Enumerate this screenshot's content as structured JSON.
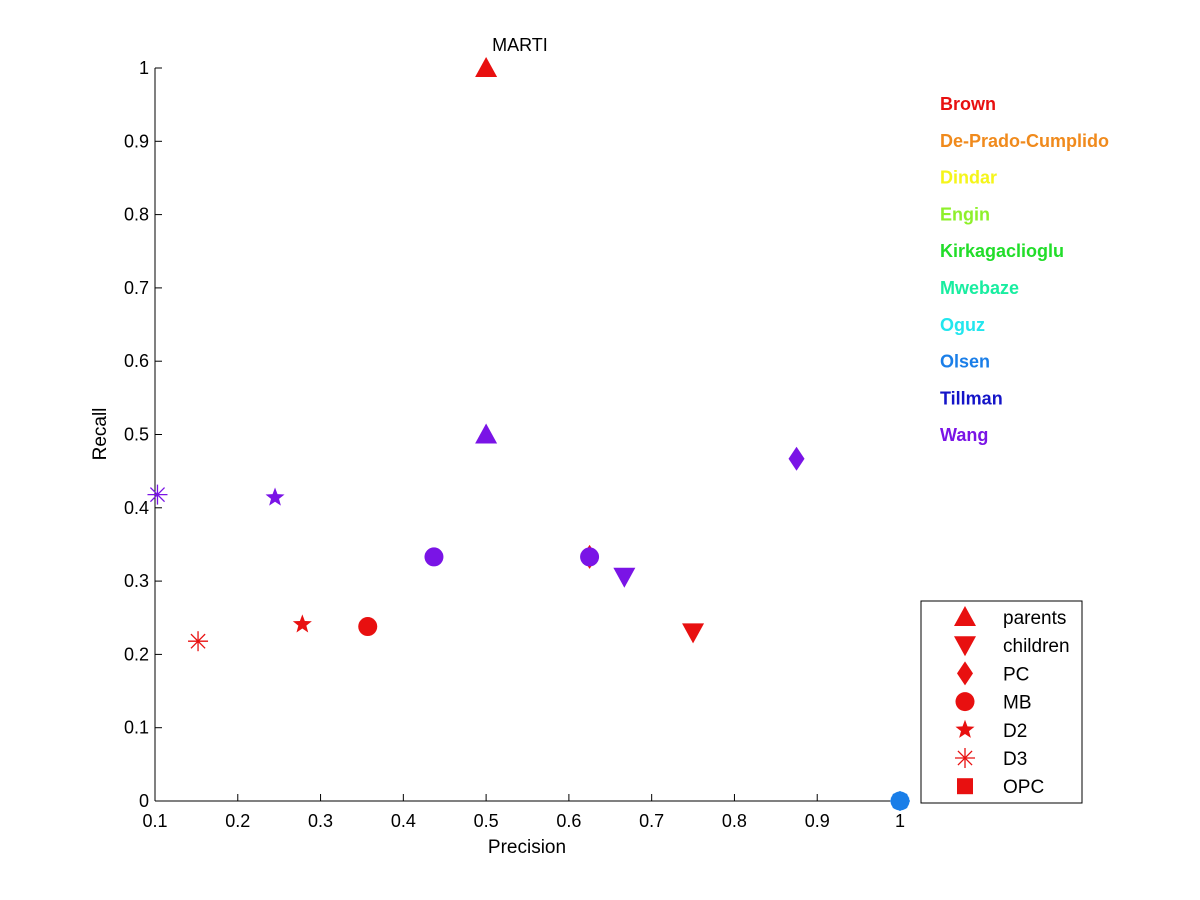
{
  "chart_data": {
    "type": "scatter",
    "title": "",
    "xlabel": "Precision",
    "ylabel": "Recall",
    "xlim": [
      0.1,
      1
    ],
    "ylim": [
      0,
      1
    ],
    "xticks": [
      "0.1",
      "0.2",
      "0.3",
      "0.4",
      "0.5",
      "0.6",
      "0.7",
      "0.8",
      "0.9",
      "1"
    ],
    "yticks": [
      "0",
      "0.1",
      "0.2",
      "0.3",
      "0.4",
      "0.5",
      "0.6",
      "0.7",
      "0.8",
      "0.9",
      "1"
    ],
    "grid": false,
    "annotations": [
      {
        "text": "MARTI",
        "x": 0.5,
        "y": 1.0
      }
    ],
    "authors": [
      {
        "name": "Brown",
        "color": "#e81010"
      },
      {
        "name": "De-Prado-Cumplido",
        "color": "#f08a1c"
      },
      {
        "name": "Dindar",
        "color": "#f5f51a"
      },
      {
        "name": "Engin",
        "color": "#8ef02a"
      },
      {
        "name": "Kirkagaclioglu",
        "color": "#22dd2a"
      },
      {
        "name": "Mwebaze",
        "color": "#18eda0"
      },
      {
        "name": "Oguz",
        "color": "#22e6ee"
      },
      {
        "name": "Olsen",
        "color": "#1a7ee8"
      },
      {
        "name": "Tillman",
        "color": "#1414c8"
      },
      {
        "name": "Wang",
        "color": "#7a14e6"
      }
    ],
    "legend_placement": "bottom-right",
    "legend_color": "#e81010",
    "methods": [
      {
        "name": "parents",
        "marker": "triangle-up"
      },
      {
        "name": "children",
        "marker": "triangle-down"
      },
      {
        "name": "PC",
        "marker": "diamond"
      },
      {
        "name": "MB",
        "marker": "circle"
      },
      {
        "name": "D2",
        "marker": "star"
      },
      {
        "name": "D3",
        "marker": "asterisk"
      },
      {
        "name": "OPC",
        "marker": "square"
      }
    ],
    "points": [
      {
        "author": "Brown",
        "method": "parents",
        "x": 0.5,
        "y": 1.0
      },
      {
        "author": "Wang",
        "method": "parents",
        "x": 0.5,
        "y": 0.5
      },
      {
        "author": "Wang",
        "method": "PC",
        "x": 0.875,
        "y": 0.467
      },
      {
        "author": "Wang",
        "method": "D3",
        "x": 0.103,
        "y": 0.418
      },
      {
        "author": "Wang",
        "method": "D2",
        "x": 0.245,
        "y": 0.414
      },
      {
        "author": "Wang",
        "method": "MB",
        "x": 0.437,
        "y": 0.333
      },
      {
        "author": "Brown",
        "method": "PC",
        "x": 0.625,
        "y": 0.333
      },
      {
        "author": "Wang",
        "method": "MB",
        "x": 0.625,
        "y": 0.333
      },
      {
        "author": "Wang",
        "method": "children",
        "x": 0.667,
        "y": 0.306
      },
      {
        "author": "Brown",
        "method": "children",
        "x": 0.75,
        "y": 0.23
      },
      {
        "author": "Brown",
        "method": "D2",
        "x": 0.278,
        "y": 0.241
      },
      {
        "author": "Brown",
        "method": "MB",
        "x": 0.357,
        "y": 0.238
      },
      {
        "author": "Brown",
        "method": "D3",
        "x": 0.152,
        "y": 0.218
      },
      {
        "author": "Olsen",
        "method": "MB",
        "x": 1.0,
        "y": 0.0
      },
      {
        "author": "Olsen",
        "method": "D2",
        "x": 1.0,
        "y": 0.0
      },
      {
        "author": "Olsen",
        "method": "D3",
        "x": 1.0,
        "y": 0.0
      }
    ]
  }
}
